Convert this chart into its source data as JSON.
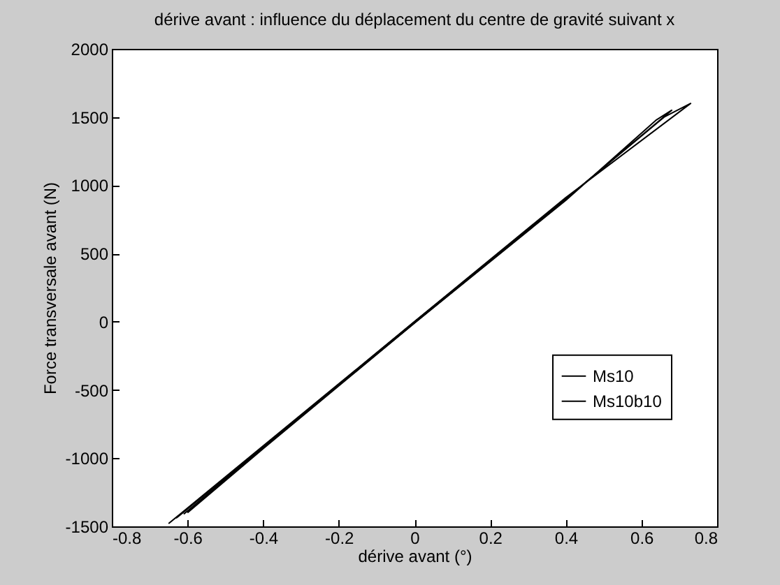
{
  "chart_data": {
    "type": "line",
    "title": "dérive avant : influence du déplacement du centre de gravité suivant x",
    "xlabel": "dérive avant (°)",
    "ylabel": "Force transversale avant (N)",
    "xlim": [
      -0.8,
      0.8
    ],
    "xticks": [
      -0.8,
      -0.6,
      -0.4,
      -0.2,
      0,
      0.2,
      0.4,
      0.6,
      0.8
    ],
    "ylim": [
      -1500,
      2000
    ],
    "yticks": [
      -1500,
      -1000,
      -500,
      0,
      500,
      1000,
      1500,
      2000
    ],
    "grid": false,
    "legend": "right",
    "line_style": "solid",
    "series": [
      {
        "name": "Ms10",
        "color": "#000000",
        "x": [
          -0.65,
          -0.4,
          0,
          0.4,
          0.73,
          0.66,
          0.4,
          0,
          -0.4,
          -0.63
        ],
        "values": [
          -1480,
          -910,
          0,
          910,
          1600,
          1500,
          900,
          -10,
          -920,
          -1440
        ]
      },
      {
        "name": "Ms10b10",
        "color": "#000000",
        "x": [
          -0.61,
          -0.4,
          0,
          0.4,
          0.68,
          0.64,
          0.4,
          0,
          -0.4,
          -0.6
        ],
        "values": [
          -1410,
          -920,
          0,
          900,
          1550,
          1480,
          890,
          -10,
          -930,
          -1400
        ]
      }
    ]
  }
}
